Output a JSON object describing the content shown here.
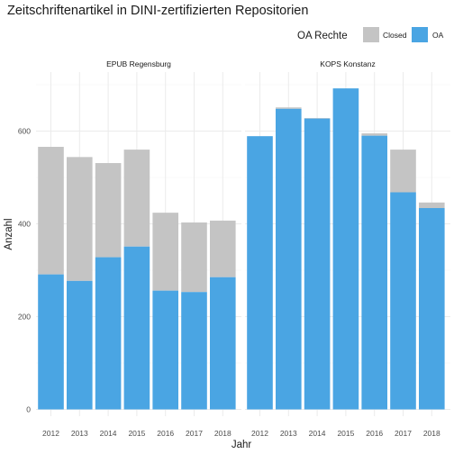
{
  "chart_data": {
    "type": "bar",
    "stacked": true,
    "title": "Zeitschriftenartikel in DINI-zertifizierten Repositorien",
    "xlabel": "Jahr",
    "ylabel": "Anzahl",
    "ylim": [
      0,
      720
    ],
    "yticks": [
      0,
      200,
      400,
      600
    ],
    "grid": true,
    "legend": {
      "title": "OA Rechte",
      "position": "top-right",
      "entries": [
        {
          "label": "Closed",
          "color": "#c4c4c4"
        },
        {
          "label": "OA",
          "color": "#4aa5e3"
        }
      ]
    },
    "categories": [
      "2012",
      "2013",
      "2014",
      "2015",
      "2016",
      "2017",
      "2018"
    ],
    "panels": [
      {
        "name": "EPUB Regensburg",
        "series": [
          {
            "name": "OA",
            "values": [
              291,
              277,
              328,
              351,
              256,
              253,
              285
            ]
          },
          {
            "name": "Closed",
            "values": [
              275,
              267,
              203,
              209,
              168,
              150,
              122
            ]
          }
        ]
      },
      {
        "name": "KOPS Konstanz",
        "series": [
          {
            "name": "OA",
            "values": [
              589,
              648,
              627,
              692,
              590,
              468,
              434
            ]
          },
          {
            "name": "Closed",
            "values": [
              0,
              3,
              1,
              0,
              5,
              92,
              12
            ]
          }
        ]
      }
    ]
  }
}
